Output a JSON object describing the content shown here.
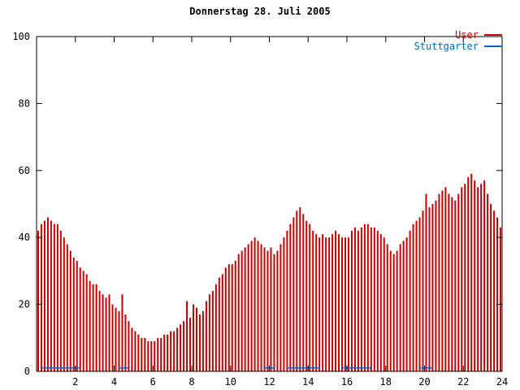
{
  "title": "Donnerstag 28. Juli 2005",
  "legend_items": [
    {
      "label": "User",
      "color": "#cc0000"
    },
    {
      "label": "Stuttgarter",
      "color": "#0066cc"
    }
  ],
  "chart_data": {
    "type": "bar",
    "title": "Donnerstag 28. Juli 2005",
    "xlabel": "",
    "ylabel": "",
    "xlim": [
      0,
      24
    ],
    "ylim": [
      0,
      100
    ],
    "x_ticks": [
      2,
      4,
      6,
      8,
      10,
      12,
      14,
      16,
      18,
      20,
      22,
      24
    ],
    "y_ticks": [
      0,
      20,
      40,
      60,
      80,
      100
    ],
    "grid": false,
    "legend_position": "top-right",
    "x_unit": "hour of day",
    "sample_interval_hours": 0.1667,
    "series": [
      {
        "name": "User",
        "style": "impulse",
        "color": "#cc0000",
        "values": [
          42,
          44,
          45,
          46,
          45,
          44,
          44,
          42,
          40,
          38,
          36,
          34,
          33,
          31,
          30,
          29,
          27,
          26,
          26,
          24,
          23,
          22,
          23,
          20,
          19,
          18,
          23,
          17,
          15,
          13,
          12,
          11,
          10,
          10,
          9,
          9,
          9,
          10,
          10,
          11,
          11,
          12,
          12,
          13,
          14,
          15,
          21,
          16,
          20,
          19,
          17,
          18,
          21,
          23,
          24,
          26,
          28,
          29,
          31,
          32,
          32,
          33,
          35,
          36,
          37,
          38,
          39,
          40,
          39,
          38,
          37,
          36,
          37,
          35,
          36,
          38,
          40,
          42,
          44,
          46,
          48,
          49,
          47,
          45,
          44,
          42,
          41,
          40,
          41,
          40,
          40,
          41,
          42,
          41,
          40,
          40,
          40,
          42,
          43,
          42,
          43,
          44,
          44,
          43,
          43,
          42,
          41,
          40,
          38,
          36,
          35,
          36,
          38,
          39,
          40,
          42,
          44,
          45,
          46,
          48,
          53,
          49,
          50,
          51,
          53,
          54,
          55,
          53,
          52,
          51,
          53,
          55,
          56,
          58,
          59,
          57,
          55,
          56,
          57,
          53,
          50,
          48,
          46,
          43
        ]
      },
      {
        "name": "Stuttgarter",
        "style": "line",
        "color": "#0066cc",
        "segments": [
          [
            0.3,
            2.2,
            1
          ],
          [
            4.3,
            4.7,
            1
          ],
          [
            11.7,
            12.3,
            1
          ],
          [
            12.9,
            14.6,
            1
          ],
          [
            15.7,
            17.3,
            1
          ],
          [
            19.7,
            20.4,
            1
          ]
        ]
      }
    ]
  }
}
